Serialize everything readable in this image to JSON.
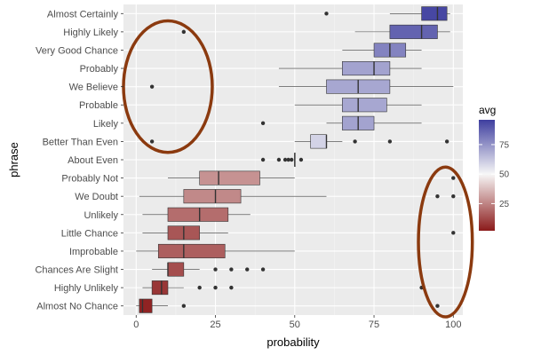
{
  "chart_data": {
    "type": "boxplot",
    "orientation": "horizontal",
    "xlabel": "probability",
    "ylabel": "phrase",
    "xlim": [
      -4,
      103
    ],
    "x_ticks": [
      0,
      25,
      50,
      75,
      100
    ],
    "grid": true,
    "legend": {
      "title": "avg",
      "placement": "right",
      "type": "colorbar",
      "range": [
        2,
        96
      ],
      "ticks": [
        25,
        50,
        75
      ],
      "color_low": "#8b1a1a",
      "color_mid": "#f7f7f7",
      "color_high": "#3f3f9f"
    },
    "phrases": [
      {
        "label": "Almost Certainly",
        "q1": 90,
        "median": 95,
        "q3": 98,
        "whisker_low": 80,
        "whisker_high": 99,
        "outliers": [
          60
        ],
        "avg": 94
      },
      {
        "label": "Highly Likely",
        "q1": 80,
        "median": 90,
        "q3": 95,
        "whisker_low": 69,
        "whisker_high": 99,
        "outliers": [
          15
        ],
        "avg": 87
      },
      {
        "label": "Very Good Chance",
        "q1": 75,
        "median": 80,
        "q3": 85,
        "whisker_low": 65,
        "whisker_high": 90,
        "outliers": [],
        "avg": 79
      },
      {
        "label": "Probably",
        "q1": 65,
        "median": 75,
        "q3": 80,
        "whisker_low": 45,
        "whisker_high": 90,
        "outliers": [],
        "avg": 71
      },
      {
        "label": "We Believe",
        "q1": 60,
        "median": 70,
        "q3": 80,
        "whisker_low": 45,
        "whisker_high": 100,
        "outliers": [
          5
        ],
        "avg": 70
      },
      {
        "label": "Probable",
        "q1": 65,
        "median": 70,
        "q3": 79,
        "whisker_low": 50,
        "whisker_high": 90,
        "outliers": [],
        "avg": 70
      },
      {
        "label": "Likely",
        "q1": 65,
        "median": 70,
        "q3": 75,
        "whisker_low": 60,
        "whisker_high": 90,
        "outliers": [
          40
        ],
        "avg": 71
      },
      {
        "label": "Better Than Even",
        "q1": 55,
        "median": 60,
        "q3": 60,
        "whisker_low": 50,
        "whisker_high": 65,
        "outliers": [
          5,
          69,
          80,
          98
        ],
        "avg": 59
      },
      {
        "label": "About Even",
        "q1": 50,
        "median": 50,
        "q3": 50,
        "whisker_low": 50,
        "whisker_high": 50,
        "outliers": [
          40,
          45,
          47,
          48,
          49,
          52
        ],
        "avg": 50
      },
      {
        "label": "Probably Not",
        "q1": 20,
        "median": 26,
        "q3": 39,
        "whisker_low": 10,
        "whisker_high": 50,
        "outliers": [
          100
        ],
        "avg": 28
      },
      {
        "label": "We Doubt",
        "q1": 15,
        "median": 25,
        "q3": 33,
        "whisker_low": 1,
        "whisker_high": 60,
        "outliers": [
          95,
          100
        ],
        "avg": 26
      },
      {
        "label": "Unlikely",
        "q1": 10,
        "median": 20,
        "q3": 29,
        "whisker_low": 2,
        "whisker_high": 36,
        "outliers": [],
        "avg": 20
      },
      {
        "label": "Little Chance",
        "q1": 10,
        "median": 15,
        "q3": 20,
        "whisker_low": 2,
        "whisker_high": 29,
        "outliers": [
          100
        ],
        "avg": 15
      },
      {
        "label": "Improbable",
        "q1": 7,
        "median": 15,
        "q3": 28,
        "whisker_low": 0,
        "whisker_high": 50,
        "outliers": [],
        "avg": 17
      },
      {
        "label": "Chances Are Slight",
        "q1": 10,
        "median": 10,
        "q3": 15,
        "whisker_low": 5,
        "whisker_high": 20,
        "outliers": [
          25,
          30,
          35,
          40
        ],
        "avg": 13
      },
      {
        "label": "Highly Unlikely",
        "q1": 5,
        "median": 8,
        "q3": 10,
        "whisker_low": 2,
        "whisker_high": 15,
        "outliers": [
          20,
          25,
          30,
          90
        ],
        "avg": 8
      },
      {
        "label": "Almost No Chance",
        "q1": 1,
        "median": 2,
        "q3": 5,
        "whisker_low": 0,
        "whisker_high": 10,
        "outliers": [
          15,
          95
        ],
        "avg": 4
      }
    ],
    "annotations": [
      {
        "shape": "ellipse",
        "color": "#8b3a0f",
        "x_range": [
          -4,
          24
        ],
        "phrase_range": [
          "Highly Likely",
          "Better Than Even"
        ]
      },
      {
        "shape": "ellipse",
        "color": "#8b3a0f",
        "x_range": [
          89,
          106
        ],
        "phrase_range": [
          "Probably Not",
          "Almost No Chance"
        ]
      }
    ]
  }
}
